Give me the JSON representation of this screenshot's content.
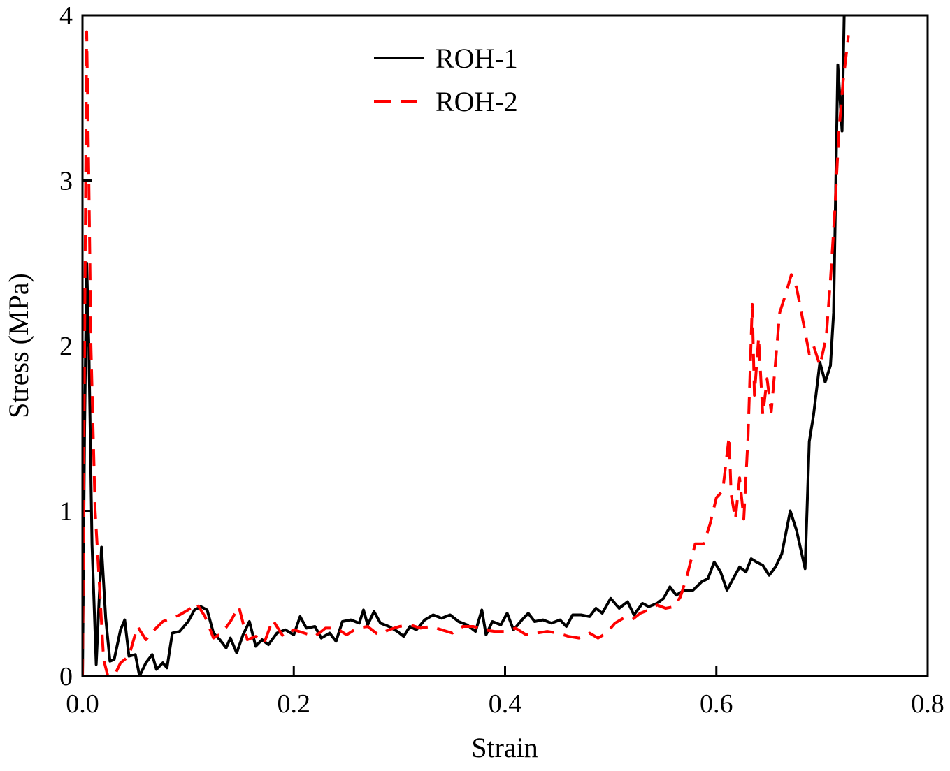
{
  "chart_data": {
    "type": "line",
    "x_label": "Strain",
    "y_label": "Stress (MPa)",
    "xlim": [
      0,
      0.8
    ],
    "ylim": [
      0,
      4
    ],
    "xticks": [
      {
        "value": 0,
        "label": "0.0"
      },
      0.2,
      0.4,
      0.6,
      0.8
    ],
    "yticks": [
      0,
      1,
      2,
      3,
      4
    ],
    "legend": "top",
    "series": [
      {
        "name": "ROH-1",
        "color": "#000000",
        "dash": "solid",
        "x": [
          0,
          0.002,
          0.004,
          0.006,
          0.009,
          0.013,
          0.018,
          0.022,
          0.026,
          0.03,
          0.036,
          0.04,
          0.044,
          0.05,
          0.054,
          0.06,
          0.066,
          0.07,
          0.076,
          0.08,
          0.085,
          0.092,
          0.1,
          0.106,
          0.112,
          0.118,
          0.124,
          0.13,
          0.136,
          0.14,
          0.146,
          0.152,
          0.158,
          0.164,
          0.17,
          0.176,
          0.184,
          0.192,
          0.2,
          0.206,
          0.212,
          0.22,
          0.226,
          0.234,
          0.24,
          0.246,
          0.254,
          0.262,
          0.266,
          0.27,
          0.276,
          0.282,
          0.29,
          0.298,
          0.304,
          0.31,
          0.316,
          0.324,
          0.332,
          0.34,
          0.348,
          0.356,
          0.364,
          0.372,
          0.378,
          0.382,
          0.388,
          0.396,
          0.402,
          0.408,
          0.416,
          0.422,
          0.428,
          0.436,
          0.444,
          0.452,
          0.458,
          0.464,
          0.472,
          0.48,
          0.486,
          0.492,
          0.5,
          0.508,
          0.516,
          0.522,
          0.53,
          0.536,
          0.544,
          0.55,
          0.556,
          0.562,
          0.57,
          0.578,
          0.586,
          0.592,
          0.598,
          0.604,
          0.61,
          0.616,
          0.622,
          0.628,
          0.633,
          0.638,
          0.644,
          0.65,
          0.656,
          0.662,
          0.67,
          0.676,
          0.684,
          0.688,
          0.692,
          0.698,
          0.703,
          0.708,
          0.711,
          0.715,
          0.719,
          0.721
        ],
        "values": [
          0,
          1.5,
          2.5,
          2.0,
          0.8,
          0.07,
          0.78,
          0.35,
          0.09,
          0.1,
          0.28,
          0.34,
          0.12,
          0.13,
          0,
          0.08,
          0.13,
          0.04,
          0.08,
          0.05,
          0.26,
          0.27,
          0.33,
          0.4,
          0.42,
          0.4,
          0.26,
          0.22,
          0.17,
          0.23,
          0.14,
          0.25,
          0.33,
          0.18,
          0.22,
          0.19,
          0.26,
          0.28,
          0.25,
          0.36,
          0.29,
          0.3,
          0.23,
          0.26,
          0.21,
          0.33,
          0.34,
          0.32,
          0.4,
          0.31,
          0.39,
          0.32,
          0.3,
          0.27,
          0.24,
          0.3,
          0.28,
          0.34,
          0.37,
          0.35,
          0.37,
          0.33,
          0.31,
          0.27,
          0.4,
          0.25,
          0.33,
          0.31,
          0.38,
          0.28,
          0.34,
          0.38,
          0.33,
          0.34,
          0.32,
          0.34,
          0.3,
          0.37,
          0.37,
          0.36,
          0.41,
          0.38,
          0.47,
          0.41,
          0.45,
          0.37,
          0.44,
          0.42,
          0.44,
          0.47,
          0.54,
          0.49,
          0.52,
          0.52,
          0.57,
          0.59,
          0.69,
          0.63,
          0.52,
          0.59,
          0.66,
          0.63,
          0.71,
          0.69,
          0.67,
          0.61,
          0.66,
          0.74,
          1.0,
          0.88,
          0.65,
          1.42,
          1.58,
          1.9,
          1.78,
          1.88,
          2.2,
          3.7,
          3.3,
          4.0
        ]
      },
      {
        "name": "ROH-2",
        "color": "#ff0000",
        "dash": "dashed",
        "x": [
          0,
          0.002,
          0.004,
          0.006,
          0.008,
          0.012,
          0.016,
          0.02,
          0.024,
          0.03,
          0.036,
          0.044,
          0.052,
          0.06,
          0.068,
          0.076,
          0.084,
          0.092,
          0.1,
          0.108,
          0.116,
          0.124,
          0.132,
          0.14,
          0.148,
          0.156,
          0.164,
          0.172,
          0.18,
          0.19,
          0.2,
          0.21,
          0.22,
          0.23,
          0.24,
          0.25,
          0.26,
          0.27,
          0.28,
          0.29,
          0.3,
          0.31,
          0.32,
          0.33,
          0.34,
          0.35,
          0.36,
          0.37,
          0.38,
          0.39,
          0.4,
          0.41,
          0.42,
          0.43,
          0.44,
          0.45,
          0.46,
          0.47,
          0.48,
          0.488,
          0.496,
          0.504,
          0.512,
          0.52,
          0.528,
          0.536,
          0.544,
          0.552,
          0.56,
          0.566,
          0.572,
          0.58,
          0.588,
          0.594,
          0.6,
          0.606,
          0.612,
          0.614,
          0.618,
          0.622,
          0.626,
          0.63,
          0.634,
          0.636,
          0.64,
          0.644,
          0.648,
          0.652,
          0.656,
          0.66,
          0.666,
          0.671,
          0.676,
          0.682,
          0.688,
          0.692,
          0.698,
          0.704,
          0.708,
          0.712,
          0.716,
          0.72,
          0.725
        ],
        "values": [
          0,
          2.0,
          3.9,
          3.0,
          2.0,
          1.0,
          0.55,
          0.1,
          0,
          0,
          0.08,
          0.12,
          0.3,
          0.22,
          0.28,
          0.33,
          0.35,
          0.37,
          0.4,
          0.44,
          0.36,
          0.23,
          0.26,
          0.33,
          0.42,
          0.22,
          0.24,
          0.2,
          0.34,
          0.24,
          0.28,
          0.26,
          0.24,
          0.29,
          0.29,
          0.25,
          0.29,
          0.3,
          0.25,
          0.28,
          0.3,
          0.31,
          0.29,
          0.3,
          0.28,
          0.26,
          0.3,
          0.3,
          0.28,
          0.27,
          0.27,
          0.29,
          0.25,
          0.26,
          0.27,
          0.26,
          0.24,
          0.23,
          0.26,
          0.23,
          0.26,
          0.32,
          0.35,
          0.34,
          0.38,
          0.4,
          0.43,
          0.41,
          0.42,
          0.48,
          0.6,
          0.8,
          0.8,
          0.92,
          1.08,
          1.12,
          1.45,
          1.1,
          0.95,
          1.2,
          0.95,
          1.45,
          2.25,
          1.7,
          2.05,
          1.58,
          1.8,
          1.6,
          1.9,
          2.2,
          2.32,
          2.43,
          2.35,
          2.15,
          1.95,
          2.0,
          1.88,
          2.05,
          2.4,
          2.8,
          3.3,
          3.6,
          3.88
        ]
      }
    ]
  }
}
